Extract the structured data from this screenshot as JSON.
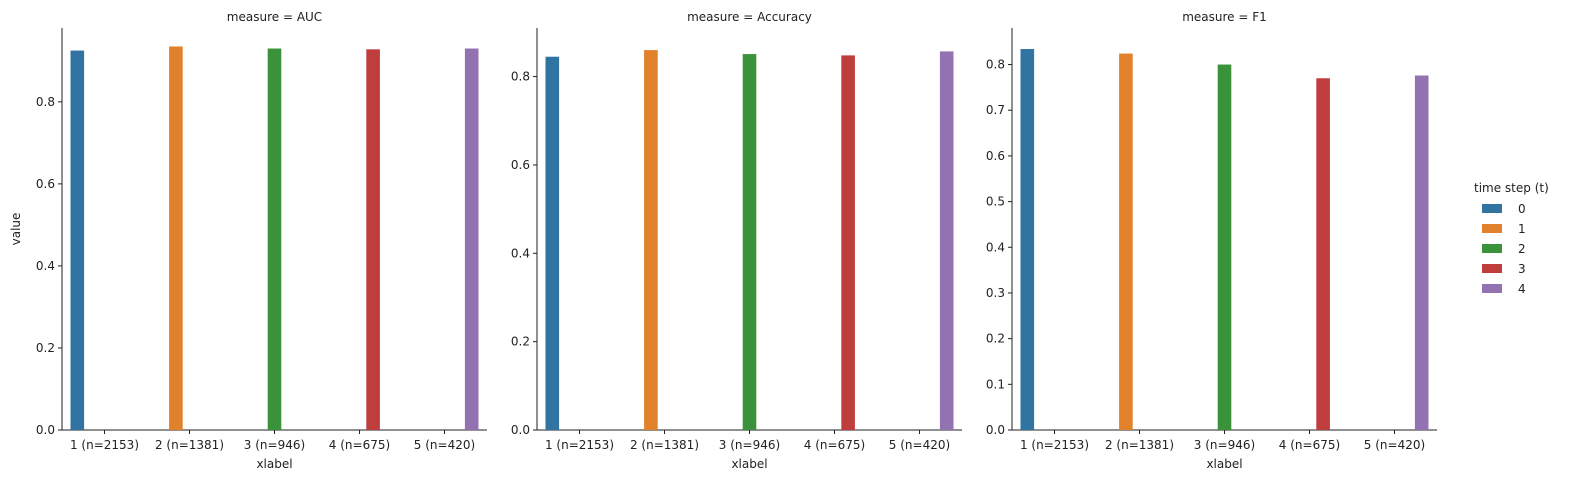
{
  "chart_data": {
    "type": "bar",
    "panels": [
      {
        "title": "measure = AUC",
        "ylim": [
          0,
          0.98
        ],
        "yticks": [
          "0.0",
          "0.2",
          "0.4",
          "0.6",
          "0.8"
        ],
        "ytick_values": [
          0,
          0.2,
          0.4,
          0.6,
          0.8
        ],
        "values": [
          0.925,
          0.935,
          0.93,
          0.928,
          0.93
        ]
      },
      {
        "title": "measure = Accuracy",
        "ylim": [
          0,
          0.91
        ],
        "yticks": [
          "0.0",
          "0.2",
          "0.4",
          "0.6",
          "0.8"
        ],
        "ytick_values": [
          0,
          0.2,
          0.4,
          0.6,
          0.8
        ],
        "values": [
          0.845,
          0.86,
          0.851,
          0.848,
          0.857
        ]
      },
      {
        "title": "measure = F1",
        "ylim": [
          0,
          0.88
        ],
        "yticks": [
          "0.0",
          "0.1",
          "0.2",
          "0.3",
          "0.4",
          "0.5",
          "0.6",
          "0.7",
          "0.8"
        ],
        "ytick_values": [
          0,
          0.1,
          0.2,
          0.3,
          0.4,
          0.5,
          0.6,
          0.7,
          0.8
        ],
        "values": [
          0.834,
          0.824,
          0.8,
          0.77,
          0.776
        ]
      }
    ],
    "categories": [
      "1 (n=2153)",
      "2 (n=1381)",
      "3 (n=946)",
      "4 (n=675)",
      "5 (n=420)"
    ],
    "xlabel": "xlabel",
    "ylabel": "value",
    "legend": {
      "title": "time step (t)",
      "placement": "right",
      "entries": [
        "0",
        "1",
        "2",
        "3",
        "4"
      ]
    },
    "colors": [
      "#3274a1",
      "#e1812c",
      "#3a923a",
      "#c03d3e",
      "#9372b2"
    ]
  }
}
